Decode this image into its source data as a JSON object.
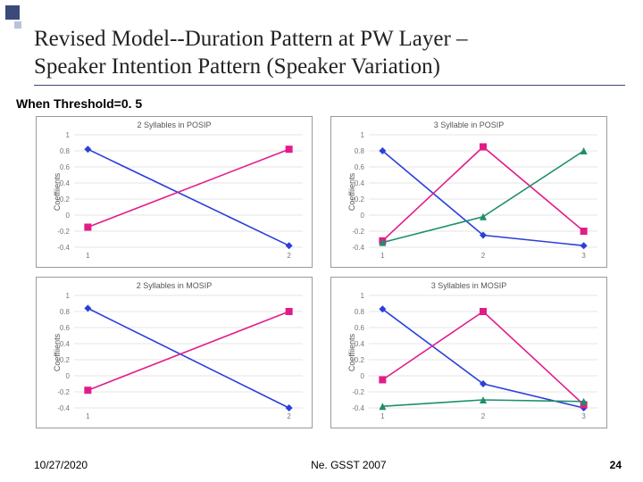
{
  "title_line1": "Revised Model--Duration Pattern at PW Layer –",
  "title_line2": "Speaker Intention Pattern (Speaker Variation)",
  "subtitle": "When Threshold=0. 5",
  "footer": {
    "date": "10/27/2020",
    "center": "Ne. GSST 2007",
    "page": "24"
  },
  "ylabel": "Coeffiients",
  "axis": {
    "ymin": -0.4,
    "ymax": 1.0,
    "yticks": [
      -0.4,
      -0.2,
      0,
      0.2,
      0.4,
      0.6,
      0.8,
      1
    ],
    "ytick_labels": [
      "-0.4",
      "-0.2",
      "0",
      "0.2",
      "0.4",
      "0.6",
      "0.8",
      "1"
    ],
    "grid_color": "#cccccc",
    "tick_fontsize": 8,
    "tick_color": "#777"
  },
  "series_style": {
    "blue": {
      "color": "#2b3fda",
      "marker": "diamond"
    },
    "pink": {
      "color": "#e11c8a",
      "marker": "square"
    },
    "green": {
      "color": "#1e8f6a",
      "marker": "triangle"
    }
  },
  "charts": [
    {
      "title": "2 Syllables in POSIP",
      "x": [
        1,
        2
      ],
      "xlabels": [
        "1",
        "2"
      ],
      "series": [
        {
          "style": "blue",
          "y": [
            0.82,
            -0.38
          ]
        },
        {
          "style": "pink",
          "y": [
            -0.15,
            0.82
          ]
        }
      ]
    },
    {
      "title": "3 Syllable in POSIP",
      "x": [
        1,
        2,
        3
      ],
      "xlabels": [
        "1",
        "2",
        "3"
      ],
      "series": [
        {
          "style": "blue",
          "y": [
            0.8,
            -0.25,
            -0.38
          ]
        },
        {
          "style": "pink",
          "y": [
            -0.32,
            0.85,
            -0.2
          ]
        },
        {
          "style": "green",
          "y": [
            -0.34,
            -0.02,
            0.8
          ]
        }
      ]
    },
    {
      "title": "2 Syllables in MOSIP",
      "x": [
        1,
        2
      ],
      "xlabels": [
        "1",
        "2"
      ],
      "series": [
        {
          "style": "blue",
          "y": [
            0.84,
            -0.4
          ]
        },
        {
          "style": "pink",
          "y": [
            -0.18,
            0.8
          ]
        }
      ]
    },
    {
      "title": "3 Syllables in MOSIP",
      "x": [
        1,
        2,
        3
      ],
      "xlabels": [
        "1",
        "2",
        "3"
      ],
      "series": [
        {
          "style": "blue",
          "y": [
            0.83,
            -0.1,
            -0.4
          ]
        },
        {
          "style": "pink",
          "y": [
            -0.05,
            0.8,
            -0.36
          ]
        },
        {
          "style": "green",
          "y": [
            -0.38,
            -0.3,
            -0.32
          ]
        }
      ]
    }
  ]
}
